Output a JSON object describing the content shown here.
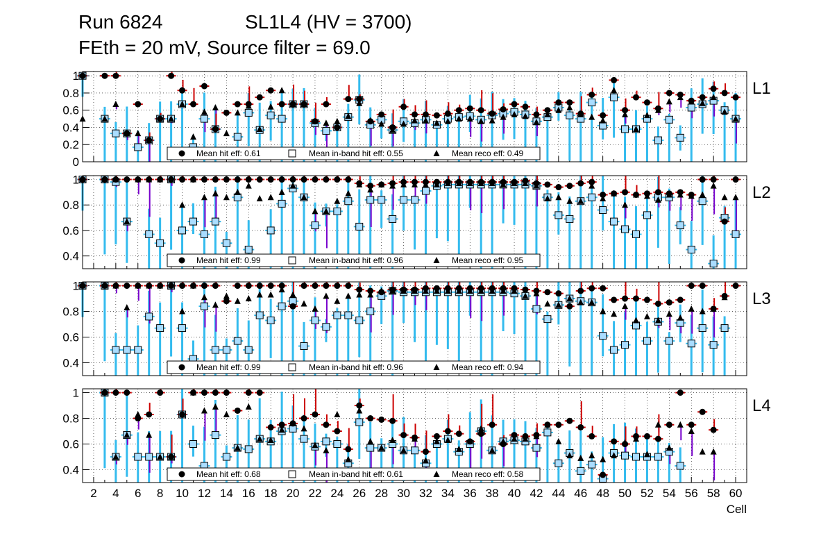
{
  "header": {
    "run": "Run 6824",
    "superlayer": "SL1L4 (HV = 3700)",
    "settings": "FEth = 20 mV, Source filter = 69.0"
  },
  "colors": {
    "hit_error": "#cc0000",
    "inband_error": "#33bbee",
    "reco_error": "#7700cc",
    "grid": "#000000",
    "marker": "#000000",
    "box_fill": "#aaddff"
  },
  "chart_data": {
    "type": "scatter",
    "xlabel": "Cell",
    "x_ticks": [
      2,
      4,
      6,
      8,
      10,
      12,
      14,
      16,
      18,
      20,
      22,
      24,
      26,
      28,
      30,
      32,
      34,
      36,
      38,
      40,
      42,
      44,
      46,
      48,
      50,
      52,
      54,
      56,
      58,
      60
    ],
    "xlim": [
      1,
      61
    ],
    "legend_labels": {
      "hit": "Mean hit  eff",
      "inband": "Mean in-band hit eff",
      "reco": "Mean reco eff"
    },
    "panels": [
      {
        "layer": "L1",
        "ylim": [
          0,
          1.05
        ],
        "y_ticks": [
          0,
          0.2,
          0.4,
          0.6,
          0.8,
          1
        ],
        "y_tick_labels": [
          "0",
          "0.2",
          "0.4",
          "0.6",
          "0.8",
          "1"
        ],
        "legend": {
          "hit": "0.61",
          "inband": "0.55",
          "reco": "0.49"
        },
        "hit": [
          1,
          null,
          1,
          1,
          0.33,
          0.67,
          0.25,
          0.5,
          1,
          0.83,
          0.67,
          0.88,
          0.38,
          0.57,
          0.67,
          0.67,
          0.75,
          0.83,
          0.67,
          0.67,
          0.67,
          0.47,
          0.67,
          0.4,
          0.73,
          0.73,
          0.47,
          0.55,
          0.4,
          0.64,
          0.55,
          0.55,
          0.54,
          0.56,
          0.6,
          0.62,
          0.6,
          0.56,
          0.61,
          0.67,
          0.64,
          0.55,
          0.6,
          0.69,
          0.69,
          0.56,
          0.78,
          0.54,
          0.95,
          0.6,
          0.75,
          0.69,
          0.62,
          0.8,
          0.78,
          0.71,
          0.75,
          0.85,
          0.8,
          0.75
        ],
        "inband": [
          1,
          null,
          0.5,
          0.33,
          0.33,
          0.17,
          0.25,
          0.5,
          0.5,
          0.67,
          0.17,
          0.5,
          0.38,
          null,
          0.29,
          0.57,
          0.37,
          0.54,
          0.5,
          0.67,
          0.67,
          0.45,
          0.36,
          0.4,
          0.52,
          0.72,
          0.43,
          0.49,
          0.37,
          0.47,
          0.45,
          0.49,
          0.43,
          0.5,
          0.52,
          0.53,
          0.49,
          0.54,
          0.56,
          0.58,
          0.55,
          0.47,
          0.52,
          0.63,
          0.54,
          0.5,
          0.69,
          0.42,
          0.75,
          0.38,
          0.38,
          0.5,
          0.25,
          0.49,
          0.28,
          0.63,
          0.67,
          0.71,
          0.6,
          0.5
        ],
        "reco": [
          0.5,
          null,
          0.5,
          0.67,
          0.33,
          0.33,
          0.25,
          0.5,
          0.5,
          0.67,
          0.29,
          0.58,
          0.63,
          0.33,
          0.57,
          0.65,
          0.38,
          0.64,
          0.83,
          0.67,
          0.67,
          0.47,
          0.45,
          0.47,
          0.53,
          0.68,
          0.48,
          0.44,
          0.37,
          0.44,
          0.48,
          0.48,
          0.45,
          0.47,
          0.5,
          0.5,
          0.47,
          0.48,
          0.52,
          0.55,
          0.53,
          0.46,
          0.55,
          0.6,
          0.63,
          0.55,
          0.52,
          0.48,
          0.83,
          0.55,
          0.38,
          0.54,
          0.6,
          0.7,
          0.75,
          0.7,
          0.68,
          0.75,
          0.58,
          0.5
        ]
      },
      {
        "layer": "L2",
        "ylim": [
          0.3,
          1.03
        ],
        "y_ticks": [
          0.4,
          0.6,
          0.8,
          1
        ],
        "y_tick_labels": [
          "0.4",
          "0.6",
          "0.8",
          "1"
        ],
        "legend": {
          "hit": "0.99",
          "inband": "0.96",
          "reco": "0.95"
        },
        "hit": [
          1,
          null,
          1,
          1,
          1,
          1,
          1,
          1,
          1,
          1,
          1,
          1,
          1,
          1,
          1,
          1,
          1,
          1,
          1,
          1,
          1,
          1,
          1,
          1,
          1,
          0.97,
          0.95,
          0.96,
          0.97,
          0.98,
          0.98,
          0.98,
          0.98,
          0.98,
          0.98,
          0.98,
          0.98,
          0.98,
          0.98,
          0.98,
          0.99,
          0.97,
          0.96,
          0.94,
          0.95,
          0.97,
          0.98,
          0.88,
          0.89,
          0.9,
          0.88,
          0.89,
          0.9,
          0.89,
          0.9,
          0.88,
          1,
          1,
          0.67,
          1
        ],
        "inband": [
          1,
          null,
          1,
          0.98,
          0.67,
          null,
          0.57,
          0.5,
          1,
          0.6,
          0.67,
          0.57,
          0.67,
          0.5,
          0.86,
          0.45,
          null,
          0.6,
          0.81,
          0.93,
          0.86,
          0.64,
          0.75,
          0.75,
          0.83,
          0.63,
          0.84,
          0.84,
          0.69,
          0.84,
          0.84,
          0.91,
          0.95,
          0.96,
          0.96,
          0.96,
          0.96,
          0.96,
          0.96,
          0.96,
          0.96,
          0.95,
          0.86,
          0.72,
          0.69,
          0.83,
          0.86,
          0.76,
          0.67,
          0.61,
          0.57,
          0.72,
          0.86,
          0.86,
          0.64,
          0.45,
          0.83,
          0.34,
          0.7,
          0.57
        ],
        "reco": [
          1,
          null,
          1,
          1,
          0.67,
          1,
          1,
          1,
          1,
          0.8,
          1,
          0.86,
          0.89,
          0.86,
          0.9,
          0.95,
          0.85,
          0.86,
          0.9,
          0.95,
          0.86,
          0.75,
          0.75,
          0.83,
          0.89,
          0.96,
          0.92,
          0.96,
          0.95,
          0.96,
          0.96,
          0.96,
          0.96,
          0.97,
          0.97,
          0.97,
          0.97,
          0.97,
          0.96,
          0.97,
          0.97,
          0.95,
          0.85,
          0.86,
          0.83,
          0.83,
          0.95,
          0.85,
          0.89,
          0.8,
          0.88,
          0.87,
          0.84,
          0.88,
          0.88,
          0.87,
          0.88,
          0.95,
          0.86,
          0.86
        ]
      },
      {
        "layer": "L3",
        "ylim": [
          0.3,
          1.03
        ],
        "y_ticks": [
          0.4,
          0.6,
          0.8,
          1
        ],
        "y_tick_labels": [
          "0.4",
          "0.6",
          "0.8",
          "1"
        ],
        "legend": {
          "hit": "0.99",
          "inband": "0.96",
          "reco": "0.94"
        },
        "hit": [
          1,
          null,
          1,
          1,
          1,
          1,
          1,
          1,
          1,
          1,
          1,
          1,
          1,
          0.88,
          1,
          1,
          1,
          1,
          1,
          0.84,
          1,
          1,
          1,
          1,
          1,
          0.97,
          0.96,
          0.95,
          0.97,
          0.97,
          0.97,
          0.98,
          0.98,
          0.98,
          0.98,
          0.98,
          0.98,
          0.98,
          0.98,
          0.98,
          0.97,
          0.96,
          0.95,
          0.94,
          0.84,
          0.96,
          0.98,
          0.98,
          0.89,
          0.9,
          0.9,
          0.89,
          0.86,
          0.87,
          0.89,
          1,
          1,
          0.82,
          0.92,
          1
        ],
        "inband": [
          1,
          null,
          1,
          0.5,
          0.5,
          0.5,
          0.76,
          0.67,
          1,
          0.67,
          0.43,
          0.84,
          0.5,
          0.5,
          0.57,
          0.5,
          0.77,
          0.73,
          0.84,
          0.88,
          0.53,
          0.73,
          0.68,
          0.77,
          0.77,
          0.73,
          0.8,
          0.92,
          0.96,
          0.95,
          0.95,
          0.95,
          0.95,
          0.95,
          0.95,
          0.95,
          0.95,
          0.95,
          0.95,
          0.94,
          0.92,
          0.82,
          0.74,
          0.85,
          0.9,
          0.88,
          0.87,
          0.61,
          0.5,
          0.54,
          0.69,
          0.57,
          0.72,
          0.57,
          0.71,
          0.55,
          0.67,
          0.54,
          0.67,
          null
        ],
        "reco": [
          1,
          null,
          1,
          1,
          0.83,
          1,
          1,
          1,
          1,
          0.8,
          1,
          0.91,
          0.85,
          0.92,
          0.88,
          0.9,
          0.93,
          0.93,
          0.97,
          0.93,
          0.86,
          0.82,
          0.92,
          0.88,
          0.92,
          0.93,
          0.93,
          0.96,
          0.96,
          0.96,
          0.96,
          0.96,
          0.96,
          0.96,
          0.96,
          0.96,
          0.96,
          0.96,
          0.96,
          0.96,
          0.92,
          0.94,
          0.86,
          0.85,
          0.9,
          0.87,
          0.87,
          0.8,
          0.78,
          0.84,
          0.73,
          0.76,
          0.73,
          0.78,
          0.75,
          0.82,
          0.8,
          0.82,
          0.91,
          null
        ]
      },
      {
        "layer": "L4",
        "ylim": [
          0.3,
          1.03
        ],
        "y_ticks": [
          0.4,
          0.6,
          0.8,
          1
        ],
        "y_tick_labels": [
          "0.4",
          "0.6",
          "0.8",
          "1"
        ],
        "legend": {
          "hit": "0.68",
          "inband": "0.61",
          "reco": "0.58"
        },
        "hit": [
          null,
          null,
          1,
          1,
          1,
          0.8,
          0.83,
          1,
          0.5,
          0.83,
          1,
          1,
          1,
          1,
          0.86,
          1,
          1,
          0.73,
          0.75,
          0.76,
          0.8,
          0.83,
          0.75,
          0.7,
          0.56,
          0.9,
          0.8,
          0.79,
          0.78,
          0.67,
          0.65,
          0.54,
          0.66,
          0.7,
          0.68,
          0.62,
          0.68,
          0.75,
          0.6,
          0.67,
          0.66,
          0.67,
          0.75,
          0.75,
          0.78,
          0.73,
          0.66,
          0.36,
          0.62,
          0.6,
          0.66,
          0.66,
          0.64,
          0.75,
          1,
          0.75,
          0.85,
          0.71,
          null,
          null
        ],
        "inband": [
          null,
          null,
          1,
          0.5,
          0.67,
          0.5,
          0.5,
          0.5,
          0.5,
          0.83,
          0.6,
          0.43,
          0.67,
          0.5,
          0.57,
          0.56,
          0.64,
          0.62,
          0.7,
          0.72,
          0.64,
          0.58,
          0.62,
          0.6,
          0.45,
          0.77,
          0.57,
          0.57,
          0.6,
          0.55,
          0.55,
          0.45,
          0.6,
          0.64,
          0.54,
          0.6,
          0.7,
          0.55,
          0.62,
          0.63,
          0.62,
          0.57,
          0.69,
          0.45,
          0.53,
          0.39,
          0.44,
          0.33,
          0.53,
          0.51,
          0.5,
          0.5,
          0.5,
          0.54,
          0.43,
          null,
          null,
          null,
          null,
          null
        ],
        "reco": [
          null,
          null,
          1,
          0.5,
          0.67,
          0.83,
          0.67,
          0.5,
          0.5,
          0.83,
          1,
          0.86,
          0.89,
          0.83,
          0.57,
          0.89,
          0.64,
          0.63,
          0.71,
          0.76,
          0.72,
          0.59,
          0.55,
          0.83,
          0.48,
          0.86,
          0.62,
          0.57,
          0.63,
          0.55,
          0.64,
          0.47,
          0.62,
          0.63,
          0.56,
          0.62,
          0.72,
          0.55,
          0.62,
          0.64,
          0.64,
          0.66,
          0.75,
          0.62,
          0.51,
          0.49,
          0.51,
          0.48,
          0.51,
          0.61,
          0.64,
          0.52,
          0.75,
          0.57,
          0.75,
          0.7,
          0.54,
          0.54,
          null,
          null
        ]
      }
    ]
  }
}
